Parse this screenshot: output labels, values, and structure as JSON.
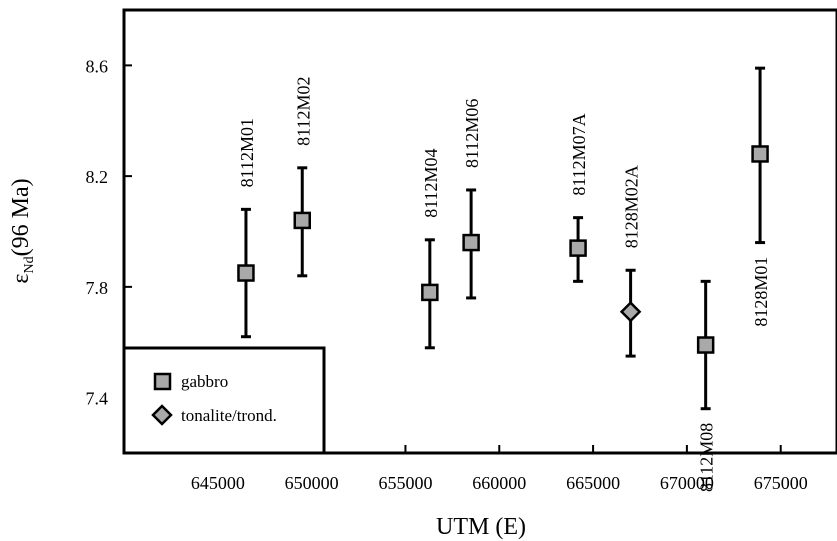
{
  "chart_data": {
    "type": "scatter",
    "title": "",
    "xlabel": "UTM (E)",
    "ylabel_main": "ε",
    "ylabel_sub": "Nd",
    "ylabel_rest": "(96 Ma)",
    "xlim": [
      640000,
      678000
    ],
    "ylim": [
      7.2,
      8.8
    ],
    "xticks": [
      645000,
      650000,
      655000,
      660000,
      665000,
      670000,
      675000
    ],
    "xtick_labels": [
      "645000",
      "650000",
      "655000",
      "660000",
      "665000",
      "670000",
      "675000"
    ],
    "yticks": [
      7.4,
      7.8,
      8.2,
      8.6
    ],
    "ytick_labels": [
      "7.4",
      "7.8",
      "8.2",
      "8.6"
    ],
    "grid": false,
    "legend_position": "bottom-left",
    "series": [
      {
        "name": "gabbro",
        "marker": "square",
        "color": "#a9a9a9",
        "points": [
          {
            "label": "8112M01",
            "x": 646500,
            "y": 7.85,
            "err_low": 7.62,
            "err_high": 8.08
          },
          {
            "label": "8112M02",
            "x": 649500,
            "y": 8.04,
            "err_low": 7.84,
            "err_high": 8.23
          },
          {
            "label": "8112M04",
            "x": 656300,
            "y": 7.78,
            "err_low": 7.58,
            "err_high": 7.97
          },
          {
            "label": "8112M06",
            "x": 658500,
            "y": 7.96,
            "err_low": 7.76,
            "err_high": 8.15
          },
          {
            "label": "8112M07A",
            "x": 664200,
            "y": 7.94,
            "err_low": 7.82,
            "err_high": 8.05
          },
          {
            "label": "8112M08",
            "x": 671000,
            "y": 7.59,
            "err_low": 7.36,
            "err_high": 7.82
          },
          {
            "label": "8128M01",
            "x": 673900,
            "y": 8.28,
            "err_low": 7.96,
            "err_high": 8.59
          }
        ]
      },
      {
        "name": "tonalite/trond.",
        "marker": "diamond",
        "color": "#a9a9a9",
        "points": [
          {
            "label": "8128M02A",
            "x": 667000,
            "y": 7.71,
            "err_low": 7.55,
            "err_high": 7.86
          }
        ]
      }
    ],
    "point_label_positions": [
      "above",
      "above",
      "above",
      "above",
      "above",
      "below",
      "below",
      "above"
    ]
  }
}
